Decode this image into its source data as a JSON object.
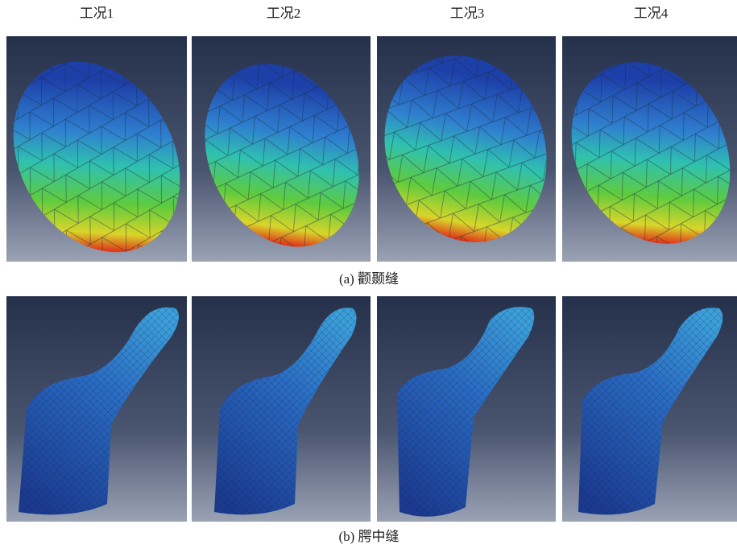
{
  "columns": [
    "工况1",
    "工况2",
    "工况3",
    "工况4"
  ],
  "captions": [
    "(a) 颧颞缝",
    "(b) 腭中缝"
  ]
}
